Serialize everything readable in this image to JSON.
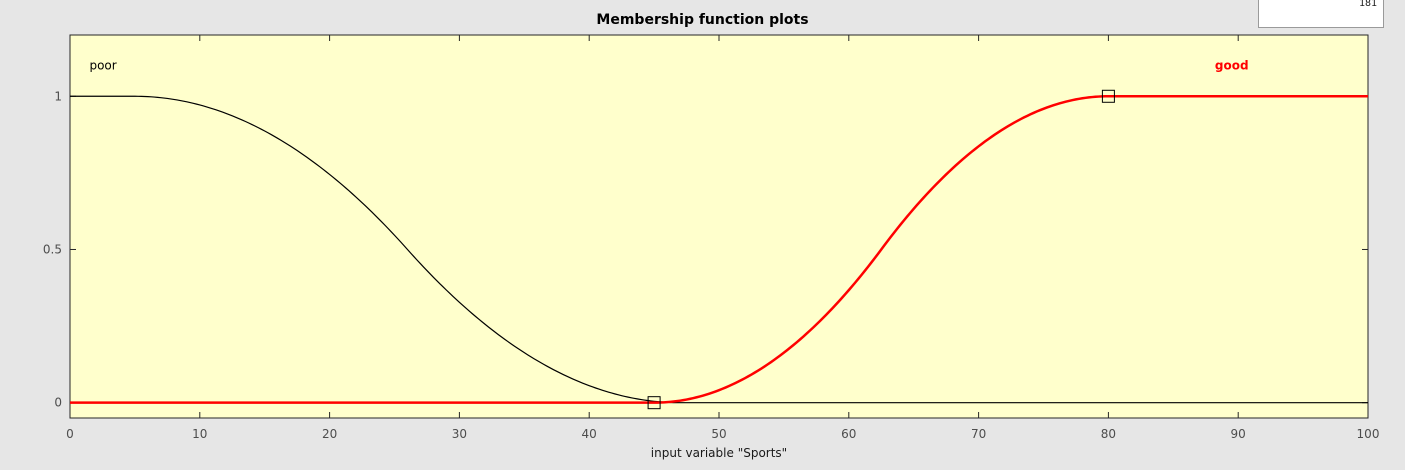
{
  "window": {
    "corner_value": "181"
  },
  "chart_data": {
    "type": "line",
    "title": "Membership function plots",
    "xlabel": "input variable \"Sports\"",
    "ylabel": "",
    "xlim": [
      0,
      100
    ],
    "ylim": [
      -0.05,
      1.2
    ],
    "xticks": [
      0,
      10,
      20,
      30,
      40,
      50,
      60,
      70,
      80,
      90,
      100
    ],
    "yticks": [
      0,
      0.5,
      1
    ],
    "yticklabels": [
      "0",
      "0.5",
      "1"
    ],
    "background_color": "#ffffcc",
    "grid": false,
    "series": [
      {
        "name": "poor",
        "kind": "zmf",
        "params": [
          5,
          47
        ],
        "color": "#000000",
        "selected": false,
        "label_pos": [
          1.5,
          1.1
        ]
      },
      {
        "name": "good",
        "kind": "smf",
        "params": [
          45,
          80
        ],
        "color": "#ff0000",
        "selected": true,
        "label_pos": [
          89.5,
          1.1
        ],
        "handles": [
          [
            45,
            0
          ],
          [
            80,
            1
          ]
        ]
      }
    ]
  }
}
